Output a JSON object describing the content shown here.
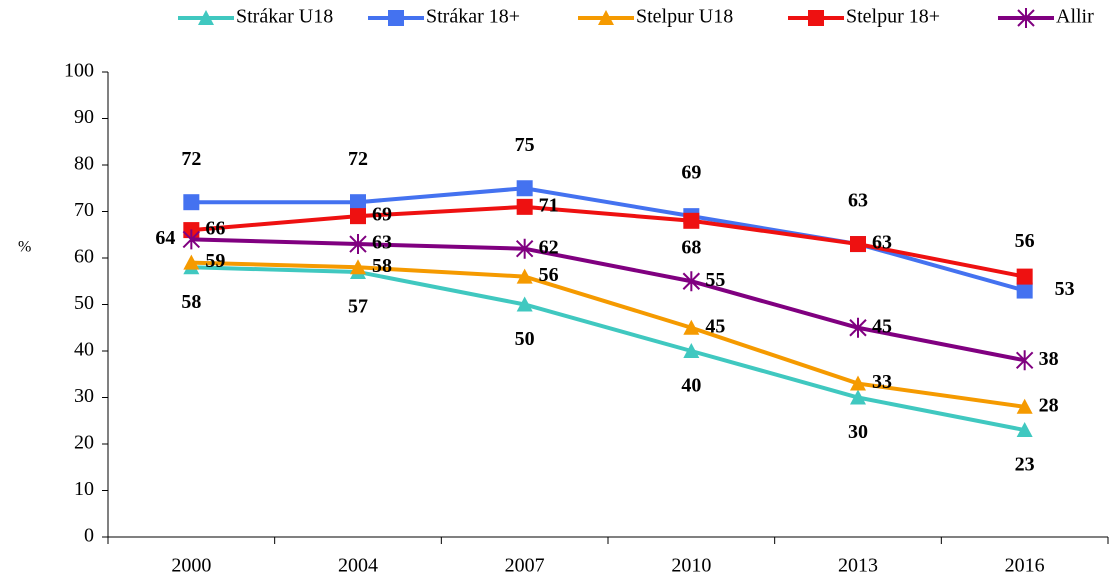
{
  "chart_data": {
    "type": "line",
    "y_label": "%",
    "categories": [
      "2000",
      "2004",
      "2007",
      "2010",
      "2013",
      "2016"
    ],
    "ylim": [
      0,
      100
    ],
    "yticks": [
      0,
      10,
      20,
      30,
      40,
      50,
      60,
      70,
      80,
      90,
      100
    ],
    "legend": "top",
    "series": [
      {
        "name": "Strákar U18",
        "color": "#40c8c0",
        "label_color": "#1aaee0",
        "marker": "triangle",
        "values": [
          58,
          57,
          50,
          40,
          30,
          23
        ]
      },
      {
        "name": "Strákar 18+",
        "color": "#4472f0",
        "label_color": "#1a2f5a",
        "marker": "square",
        "values": [
          72,
          72,
          75,
          69,
          63,
          53
        ]
      },
      {
        "name": "Stelpur U18",
        "color": "#f59a00",
        "label_color": "#f0b400",
        "marker": "triangle",
        "values": [
          59,
          58,
          56,
          45,
          33,
          28
        ]
      },
      {
        "name": "Stelpur 18+",
        "color": "#ee1111",
        "label_color": "#ee1111",
        "marker": "square",
        "values": [
          66,
          69,
          71,
          68,
          63,
          56
        ]
      },
      {
        "name": "Allir",
        "color": "#800080",
        "label_color": "#7030a0",
        "marker": "star",
        "values": [
          64,
          63,
          62,
          55,
          45,
          38
        ]
      }
    ]
  }
}
